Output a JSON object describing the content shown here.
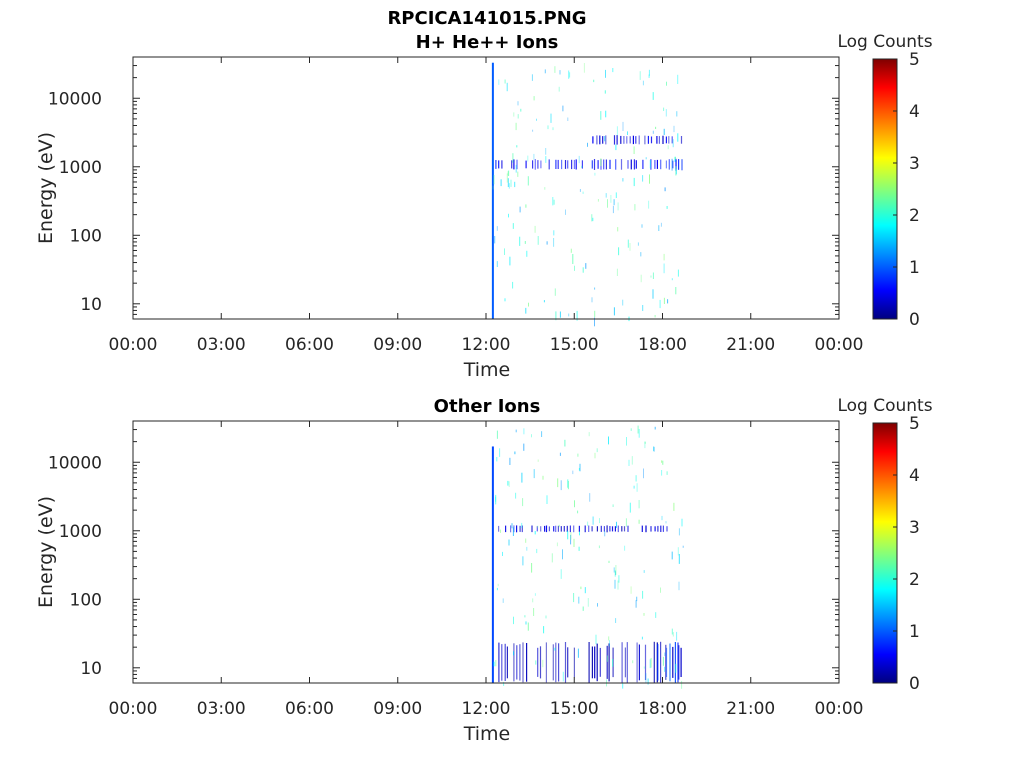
{
  "figure": {
    "title": "RPCICA141015.PNG",
    "colorbar_label": "Log Counts",
    "colormap": [
      "#00007f",
      "#0000ff",
      "#00ffff",
      "#ffff00",
      "#ff0000",
      "#7f0000"
    ]
  },
  "chart_data": [
    {
      "type": "heatmap",
      "title": "H+ He++ Ions",
      "xlabel": "Time",
      "ylabel": "Energy (eV)",
      "y_scale": "log",
      "xlim_hours": [
        0,
        24
      ],
      "ylim": [
        6,
        40000
      ],
      "x_tick_labels": [
        "00:00",
        "03:00",
        "06:00",
        "09:00",
        "12:00",
        "15:00",
        "18:00",
        "21:00",
        "00:00"
      ],
      "y_ticks": [
        10,
        100,
        1000,
        10000
      ],
      "y_tick_labels": [
        "10",
        "100",
        "1000",
        "10000"
      ],
      "colorbar": {
        "range": [
          0,
          5
        ],
        "ticks": [
          0,
          1,
          2,
          3,
          4,
          5
        ],
        "tick_labels": [
          "0",
          "1",
          "2",
          "3",
          "4",
          "5"
        ]
      },
      "data_coverage_hours": [
        12.2,
        18.7
      ],
      "features": [
        {
          "time_range_hours": [
            12.2,
            12.3
          ],
          "energy_range_ev": [
            6,
            33000
          ],
          "log_counts": 1.0
        },
        {
          "time_range_hours": [
            12.3,
            18.7
          ],
          "energy_range_ev": [
            900,
            1300
          ],
          "log_counts": 0.6
        },
        {
          "time_range_hours": [
            15.6,
            18.7
          ],
          "energy_range_ev": [
            2100,
            2900
          ],
          "log_counts": 0.5
        },
        {
          "time_range_hours": [
            17.6,
            17.8
          ],
          "energy_range_ev": [
            800,
            1400
          ],
          "log_counts": 1.2
        },
        {
          "time_range_hours": [
            17.6,
            17.8
          ],
          "energy_range_ev": [
            2000,
            3000
          ],
          "log_counts": 1.1
        },
        {
          "time_range_hours": [
            18.2,
            18.7
          ],
          "energy_range_ev": [
            850,
            1350
          ],
          "log_counts": 1.1
        }
      ]
    },
    {
      "type": "heatmap",
      "title": "Other Ions",
      "xlabel": "Time",
      "ylabel": "Energy (eV)",
      "y_scale": "log",
      "xlim_hours": [
        0,
        24
      ],
      "ylim": [
        6,
        40000
      ],
      "x_tick_labels": [
        "00:00",
        "03:00",
        "06:00",
        "09:00",
        "12:00",
        "15:00",
        "18:00",
        "21:00",
        "00:00"
      ],
      "y_ticks": [
        10,
        100,
        1000,
        10000
      ],
      "y_tick_labels": [
        "10",
        "100",
        "1000",
        "10000"
      ],
      "colorbar": {
        "range": [
          0,
          5
        ],
        "ticks": [
          0,
          1,
          2,
          3,
          4,
          5
        ],
        "tick_labels": [
          "0",
          "1",
          "2",
          "3",
          "4",
          "5"
        ]
      },
      "data_coverage_hours": [
        12.2,
        18.7
      ],
      "features": [
        {
          "time_range_hours": [
            12.2,
            12.3
          ],
          "energy_range_ev": [
            6,
            17000
          ],
          "log_counts": 0.9
        },
        {
          "time_range_hours": [
            12.3,
            18.6
          ],
          "energy_range_ev": [
            950,
            1200
          ],
          "log_counts": 0.4
        },
        {
          "time_range_hours": [
            12.3,
            18.7
          ],
          "energy_range_ev": [
            6,
            24
          ],
          "log_counts": 0.3
        },
        {
          "time_range_hours": [
            17.6,
            18.7
          ],
          "energy_range_ev": [
            6,
            24
          ],
          "log_counts": 0.9
        }
      ]
    }
  ]
}
